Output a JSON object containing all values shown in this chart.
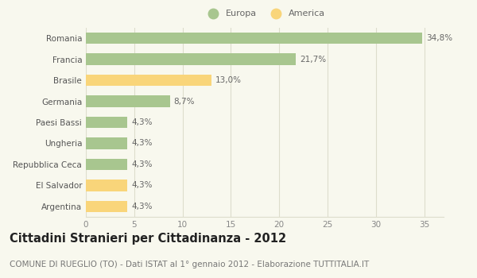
{
  "categories": [
    "Romania",
    "Francia",
    "Brasile",
    "Germania",
    "Paesi Bassi",
    "Ungheria",
    "Repubblica Ceca",
    "El Salvador",
    "Argentina"
  ],
  "values": [
    34.8,
    21.7,
    13.0,
    8.7,
    4.3,
    4.3,
    4.3,
    4.3,
    4.3
  ],
  "labels": [
    "34,8%",
    "21,7%",
    "13,0%",
    "8,7%",
    "4,3%",
    "4,3%",
    "4,3%",
    "4,3%",
    "4,3%"
  ],
  "colors": [
    "#a8c68f",
    "#a8c68f",
    "#f9d57a",
    "#a8c68f",
    "#a8c68f",
    "#a8c68f",
    "#a8c68f",
    "#f9d57a",
    "#f9d57a"
  ],
  "legend_europa_color": "#a8c68f",
  "legend_america_color": "#f9d57a",
  "xlim": [
    0,
    37
  ],
  "xticks": [
    0,
    5,
    10,
    15,
    20,
    25,
    30,
    35
  ],
  "title": "Cittadini Stranieri per Cittadinanza - 2012",
  "subtitle": "COMUNE DI RUEGLIO (TO) - Dati ISTAT al 1° gennaio 2012 - Elaborazione TUTTITALIA.IT",
  "background_color": "#f8f8ee",
  "bar_edge_color": "none",
  "grid_color": "#ddddcc",
  "title_fontsize": 10.5,
  "subtitle_fontsize": 7.5,
  "label_fontsize": 7.5,
  "tick_fontsize": 7.5,
  "bar_height": 0.55
}
